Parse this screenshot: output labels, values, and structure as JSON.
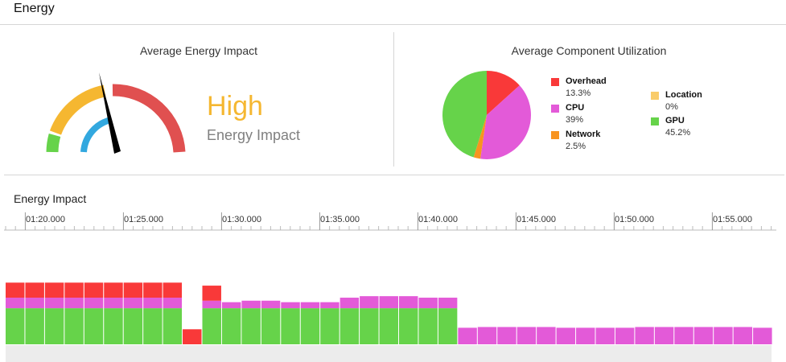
{
  "header": {
    "title": "Energy"
  },
  "gauge_panel": {
    "title": "Average Energy Impact",
    "level": "High",
    "subtitle": "Energy Impact",
    "level_color": "#f5b731"
  },
  "utilization_panel": {
    "title": "Average Component Utilization",
    "components": [
      {
        "name": "Overhead",
        "percent": "13.3%",
        "value": 13.3,
        "color": "#f93939"
      },
      {
        "name": "CPU",
        "percent": "39%",
        "value": 39,
        "color": "#e35ad8"
      },
      {
        "name": "Network",
        "percent": "2.5%",
        "value": 2.5,
        "color": "#f8941f"
      },
      {
        "name": "Location",
        "percent": "0%",
        "value": 0,
        "color": "#f9cc6a"
      },
      {
        "name": "GPU",
        "percent": "45.2%",
        "value": 45.2,
        "color": "#66d34a"
      }
    ]
  },
  "timeline": {
    "title": "Energy Impact",
    "tick_labels": [
      "01:20.000",
      "01:25.000",
      "01:30.000",
      "01:35.000",
      "01:40.000",
      "01:45.000",
      "01:50.000",
      "01:55.000"
    ],
    "series_colors": {
      "gpu": "#66d34a",
      "cpu": "#e35ad8",
      "overhead": "#f93939"
    }
  },
  "chart_data": {
    "type": "bar",
    "title": "Energy Impact",
    "stacked": true,
    "x_start_seconds": 78.9,
    "bar_seconds": 1,
    "ylim": [
      0,
      7
    ],
    "series": [
      {
        "name": "GPU",
        "values": [
          2.4,
          2.4,
          2.4,
          2.4,
          2.4,
          2.4,
          2.4,
          2.4,
          2.4,
          0,
          2.4,
          2.4,
          2.4,
          2.4,
          2.4,
          2.4,
          2.4,
          2.4,
          2.4,
          2.4,
          2.4,
          2.4,
          2.4,
          0,
          0,
          0,
          0,
          0,
          0,
          0,
          0,
          0,
          0,
          0,
          0,
          0,
          0,
          0,
          0
        ]
      },
      {
        "name": "CPU",
        "values": [
          0.7,
          0.7,
          0.7,
          0.7,
          0.7,
          0.7,
          0.7,
          0.7,
          0.7,
          0,
          0.5,
          0.4,
          0.5,
          0.5,
          0.4,
          0.4,
          0.4,
          0.7,
          0.8,
          0.8,
          0.8,
          0.7,
          0.7,
          1.1,
          1.15,
          1.15,
          1.15,
          1.15,
          1.1,
          1.1,
          1.1,
          1.1,
          1.15,
          1.15,
          1.15,
          1.15,
          1.15,
          1.15,
          1.1
        ]
      },
      {
        "name": "Overhead",
        "values": [
          1.0,
          1.0,
          1.0,
          1.0,
          1.0,
          1.0,
          1.0,
          1.0,
          1.0,
          1.0,
          1.0,
          0,
          0,
          0,
          0,
          0,
          0,
          0,
          0,
          0,
          0,
          0,
          0,
          0,
          0,
          0,
          0,
          0,
          0,
          0,
          0,
          0,
          0,
          0,
          0,
          0,
          0,
          0,
          0
        ]
      }
    ]
  }
}
